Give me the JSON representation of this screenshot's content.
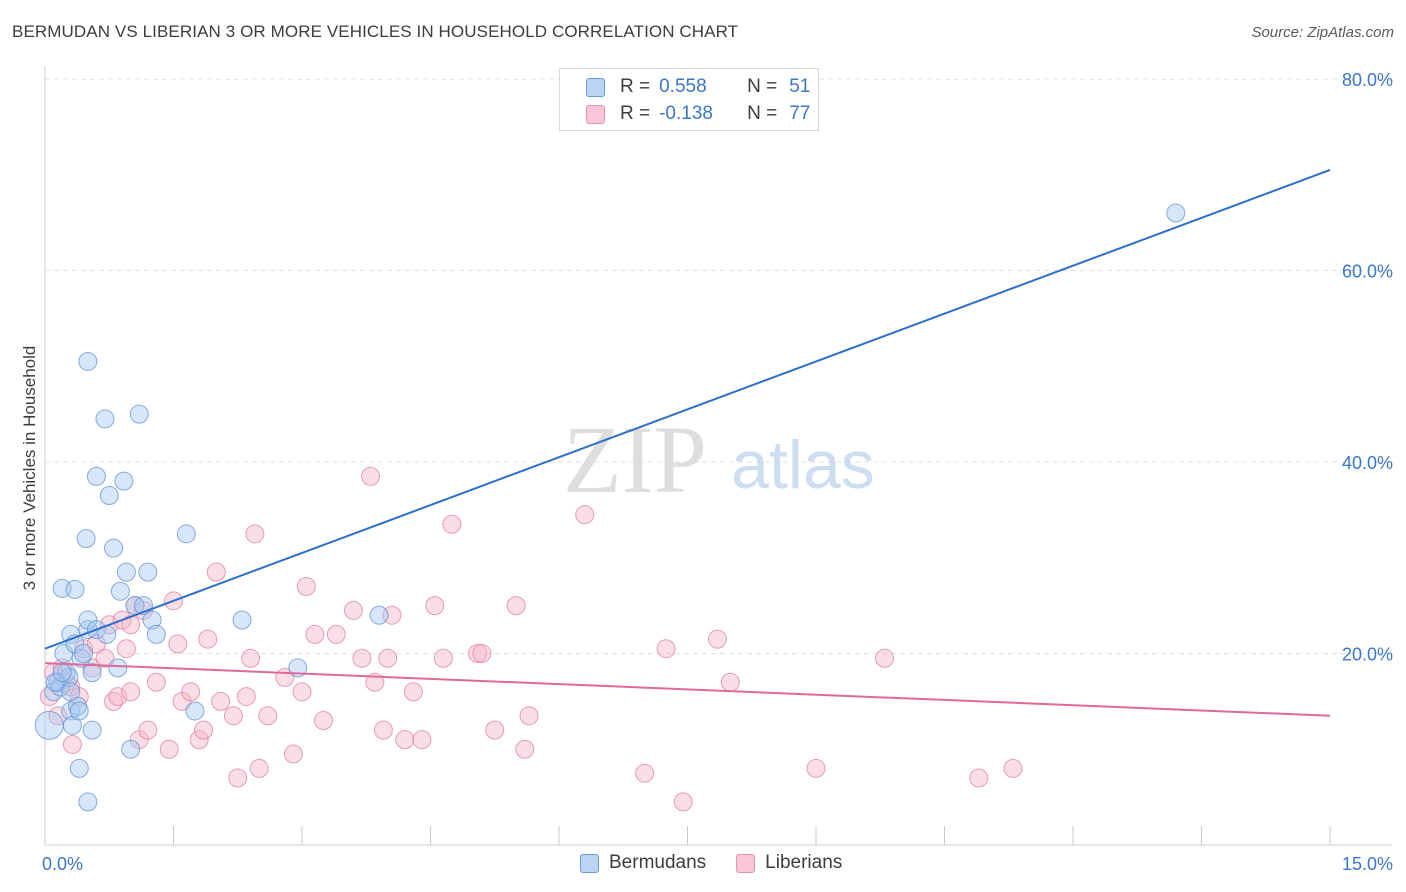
{
  "title": "BERMUDAN VS LIBERIAN 3 OR MORE VEHICLES IN HOUSEHOLD CORRELATION CHART",
  "source": "Source: ZipAtlas.com",
  "watermark": {
    "zip": "ZIP",
    "atlas": "atlas"
  },
  "legend": {
    "rows": [
      {
        "r_label": "R =",
        "r_value": "0.558",
        "n_label": "N =",
        "n_value": "51"
      },
      {
        "r_label": "R =",
        "r_value": "-0.138",
        "n_label": "N =",
        "n_value": "77"
      }
    ]
  },
  "bottom_legend": {
    "items": [
      "Bermudans",
      "Liberians"
    ]
  },
  "colors": {
    "blue_fill": "#a7c8f0",
    "blue_stroke": "#5f93d6",
    "blue_line": "#2b6fcf",
    "pink_fill": "#f5b5c8",
    "pink_stroke": "#e07f9c",
    "pink_line": "#e0689a",
    "tick_text": "#3b77c8",
    "grid": "#e0e0e0"
  },
  "chart_data": {
    "type": "scatter",
    "title": "BERMUDAN VS LIBERIAN 3 OR MORE VEHICLES IN HOUSEHOLD CORRELATION CHART",
    "xlabel": "",
    "ylabel": "3 or more Vehicles in Household",
    "xlim": [
      0,
      15
    ],
    "ylim": [
      0,
      80
    ],
    "x_tick_labels": [
      "0.0%",
      "15.0%"
    ],
    "y_ticks": [
      20,
      40,
      60,
      80
    ],
    "y_tick_labels": [
      "20.0%",
      "40.0%",
      "60.0%",
      "80.0%"
    ],
    "legend_position": "top-center",
    "series": [
      {
        "name": "Bermudans",
        "r": 0.558,
        "n": 51,
        "trendline": {
          "x": [
            0,
            15
          ],
          "y": [
            20.5,
            70.5
          ]
        },
        "points": [
          [
            0.05,
            12.5
          ],
          [
            0.1,
            16.0
          ],
          [
            0.15,
            17.0
          ],
          [
            0.18,
            16.5
          ],
          [
            0.2,
            26.8
          ],
          [
            0.22,
            20.0
          ],
          [
            0.25,
            18.0
          ],
          [
            0.28,
            17.5
          ],
          [
            0.3,
            14.0
          ],
          [
            0.3,
            22.0
          ],
          [
            0.32,
            12.5
          ],
          [
            0.35,
            21.0
          ],
          [
            0.35,
            26.7
          ],
          [
            0.38,
            14.5
          ],
          [
            0.4,
            8.0
          ],
          [
            0.42,
            19.5
          ],
          [
            0.45,
            20.0
          ],
          [
            0.48,
            32.0
          ],
          [
            0.5,
            22.5
          ],
          [
            0.5,
            23.5
          ],
          [
            0.5,
            50.5
          ],
          [
            0.5,
            4.5
          ],
          [
            0.55,
            18.0
          ],
          [
            0.55,
            12.0
          ],
          [
            0.6,
            22.5
          ],
          [
            0.6,
            38.5
          ],
          [
            0.7,
            44.5
          ],
          [
            0.72,
            22.0
          ],
          [
            0.75,
            36.5
          ],
          [
            0.8,
            31.0
          ],
          [
            0.85,
            18.5
          ],
          [
            0.88,
            26.5
          ],
          [
            0.92,
            38.0
          ],
          [
            0.95,
            28.5
          ],
          [
            1.0,
            10.0
          ],
          [
            1.05,
            25.0
          ],
          [
            1.1,
            45.0
          ],
          [
            1.15,
            25.0
          ],
          [
            1.2,
            28.5
          ],
          [
            1.25,
            23.5
          ],
          [
            1.3,
            22.0
          ],
          [
            1.65,
            32.5
          ],
          [
            1.75,
            14.0
          ],
          [
            2.3,
            23.5
          ],
          [
            2.95,
            18.5
          ],
          [
            3.9,
            24.0
          ],
          [
            13.2,
            66.0
          ],
          [
            0.12,
            17.0
          ],
          [
            0.2,
            18.0
          ],
          [
            0.4,
            14.0
          ],
          [
            0.3,
            16.0
          ]
        ]
      },
      {
        "name": "Liberians",
        "r": -0.138,
        "n": 77,
        "trendline": {
          "x": [
            0,
            15
          ],
          "y": [
            19.0,
            13.5
          ]
        },
        "points": [
          [
            0.05,
            15.5
          ],
          [
            0.1,
            18.0
          ],
          [
            0.15,
            13.5
          ],
          [
            0.2,
            18.5
          ],
          [
            0.25,
            17.0
          ],
          [
            0.3,
            16.5
          ],
          [
            0.32,
            10.5
          ],
          [
            0.4,
            15.5
          ],
          [
            0.45,
            20.5
          ],
          [
            0.55,
            18.5
          ],
          [
            0.6,
            21.0
          ],
          [
            0.7,
            19.5
          ],
          [
            0.75,
            23.0
          ],
          [
            0.8,
            15.0
          ],
          [
            0.85,
            15.5
          ],
          [
            0.9,
            23.5
          ],
          [
            0.95,
            20.5
          ],
          [
            1.0,
            16.0
          ],
          [
            1.05,
            25.0
          ],
          [
            1.1,
            11.0
          ],
          [
            1.15,
            24.5
          ],
          [
            1.2,
            12.0
          ],
          [
            1.3,
            17.0
          ],
          [
            1.45,
            10.0
          ],
          [
            1.5,
            25.5
          ],
          [
            1.55,
            21.0
          ],
          [
            1.6,
            15.0
          ],
          [
            1.7,
            16.0
          ],
          [
            1.8,
            11.0
          ],
          [
            1.85,
            12.0
          ],
          [
            1.9,
            21.5
          ],
          [
            2.0,
            28.5
          ],
          [
            2.05,
            15.0
          ],
          [
            2.2,
            13.5
          ],
          [
            2.25,
            7.0
          ],
          [
            2.35,
            15.5
          ],
          [
            2.4,
            19.5
          ],
          [
            2.45,
            32.5
          ],
          [
            2.5,
            8.0
          ],
          [
            2.6,
            13.5
          ],
          [
            2.8,
            17.5
          ],
          [
            2.9,
            9.5
          ],
          [
            3.0,
            16.0
          ],
          [
            3.05,
            27.0
          ],
          [
            3.15,
            22.0
          ],
          [
            3.25,
            13.0
          ],
          [
            3.4,
            22.0
          ],
          [
            3.6,
            24.5
          ],
          [
            3.7,
            19.5
          ],
          [
            3.8,
            38.5
          ],
          [
            3.85,
            17.0
          ],
          [
            3.95,
            12.0
          ],
          [
            4.0,
            19.5
          ],
          [
            4.05,
            24.0
          ],
          [
            4.2,
            11.0
          ],
          [
            4.3,
            16.0
          ],
          [
            4.4,
            11.0
          ],
          [
            4.55,
            25.0
          ],
          [
            4.65,
            19.5
          ],
          [
            4.75,
            33.5
          ],
          [
            5.05,
            20.0
          ],
          [
            5.1,
            20.0
          ],
          [
            5.25,
            12.0
          ],
          [
            5.5,
            25.0
          ],
          [
            5.6,
            10.0
          ],
          [
            5.65,
            13.5
          ],
          [
            6.3,
            34.5
          ],
          [
            7.0,
            7.5
          ],
          [
            7.25,
            20.5
          ],
          [
            7.45,
            4.5
          ],
          [
            7.85,
            21.5
          ],
          [
            8.0,
            17.0
          ],
          [
            9.0,
            8.0
          ],
          [
            9.8,
            19.5
          ],
          [
            10.9,
            7.0
          ],
          [
            11.3,
            8.0
          ],
          [
            1.0,
            23.0
          ]
        ]
      }
    ]
  }
}
